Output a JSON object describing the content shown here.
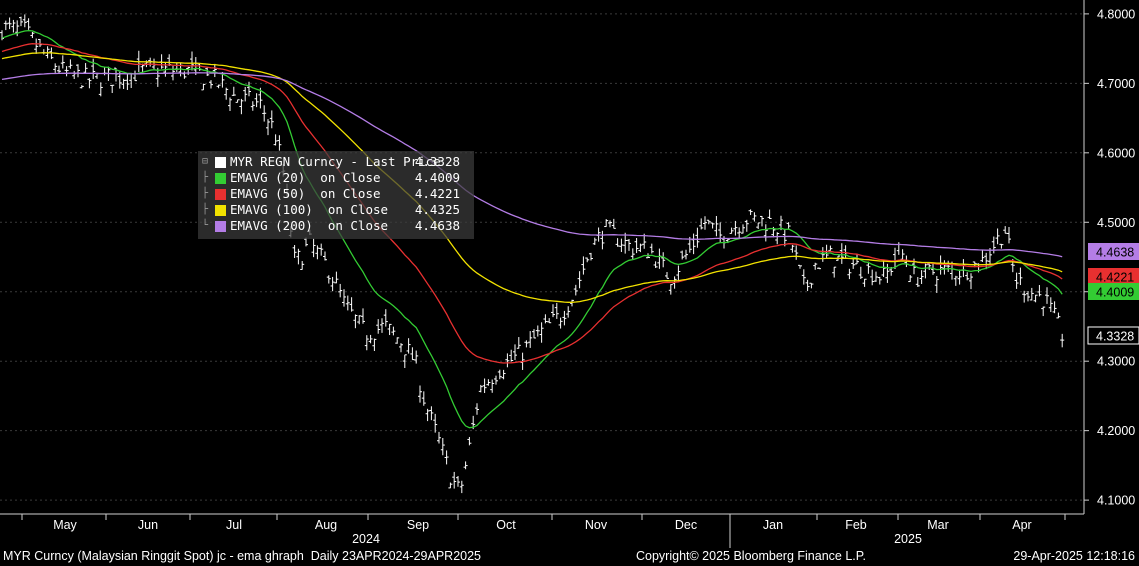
{
  "chart_data": {
    "type": "line",
    "ylim": [
      4.08,
      4.82
    ],
    "y_ticks": [
      "4.1000",
      "4.2000",
      "4.3000",
      "4.4000",
      "4.5000",
      "4.6000",
      "4.7000",
      "4.8000"
    ],
    "x_month_labels": [
      "May",
      "Jun",
      "Jul",
      "Aug",
      "Sep",
      "Oct",
      "Nov",
      "Dec",
      "Jan",
      "Feb",
      "Mar",
      "Apr"
    ],
    "year_labels": [
      "2024",
      "2025"
    ],
    "price_series": {
      "name": "MYR REGN Curncy - Last Price",
      "style": "ohlc-bars",
      "color": "#ffffff",
      "last_value": "4.3328",
      "month_points": [
        {
          "month": "Apr-24",
          "value": 4.775
        },
        {
          "month": "May",
          "value": 4.725
        },
        {
          "month": "Jun",
          "value": 4.715
        },
        {
          "month": "Jul",
          "value": 4.68
        },
        {
          "month": "Aug",
          "value": 4.4
        },
        {
          "month": "Sep",
          "value": 4.26
        },
        {
          "month": "mid-Sep",
          "value": 4.11
        },
        {
          "month": "Oct",
          "value": 4.295
        },
        {
          "month": "Nov",
          "value": 4.47
        },
        {
          "month": "Dec",
          "value": 4.475
        },
        {
          "month": "Jan",
          "value": 4.48
        },
        {
          "month": "Feb",
          "value": 4.44
        },
        {
          "month": "Mar",
          "value": 4.43
        },
        {
          "month": "Apr",
          "value": 4.38
        },
        {
          "month": "end-Apr",
          "value": 4.333
        }
      ]
    },
    "series": [
      {
        "name": "EMAVG (20)  on Close",
        "color": "#33cc33",
        "last_value": "4.4009"
      },
      {
        "name": "EMAVG (50)  on Close",
        "color": "#e83030",
        "last_value": "4.4221"
      },
      {
        "name": "EMAVG (100)  on Close",
        "color": "#f2e200",
        "last_value": "4.4325"
      },
      {
        "name": "EMAVG (200)  on Close",
        "color": "#b47de6",
        "last_value": "4.4638"
      }
    ]
  },
  "legend": {
    "rows": [
      {
        "label": "MYR REGN Curncy - Last Price",
        "value": "4.3328",
        "color": "#ffffff"
      },
      {
        "label": "EMAVG (20)  on Close",
        "value": "4.4009",
        "color": "#33cc33"
      },
      {
        "label": "EMAVG (50)  on Close",
        "value": "4.4221",
        "color": "#e83030"
      },
      {
        "label": "EMAVG (100)  on Close",
        "value": "4.4325",
        "color": "#f2e200"
      },
      {
        "label": "EMAVG (200)  on Close",
        "value": "4.4638",
        "color": "#b47de6"
      }
    ]
  },
  "right_badges": [
    {
      "text": "4.4638",
      "bg": "#b47de6",
      "fg": "#000000"
    },
    {
      "text": "4.4221",
      "bg": "#e83030",
      "fg": "#000000"
    },
    {
      "text": "4.4009",
      "bg": "#33cc33",
      "fg": "#000000"
    },
    {
      "text": "4.3328",
      "bg": "#000000",
      "fg": "#ffffff"
    }
  ],
  "footer": {
    "left": "MYR Curncy (Malaysian Ringgit Spot) jc - ema ghraph  Daily 23APR2024-29APR2025",
    "center": "Copyright© 2025 Bloomberg Finance L.P.",
    "right": "29-Apr-2025 12:18:16"
  }
}
